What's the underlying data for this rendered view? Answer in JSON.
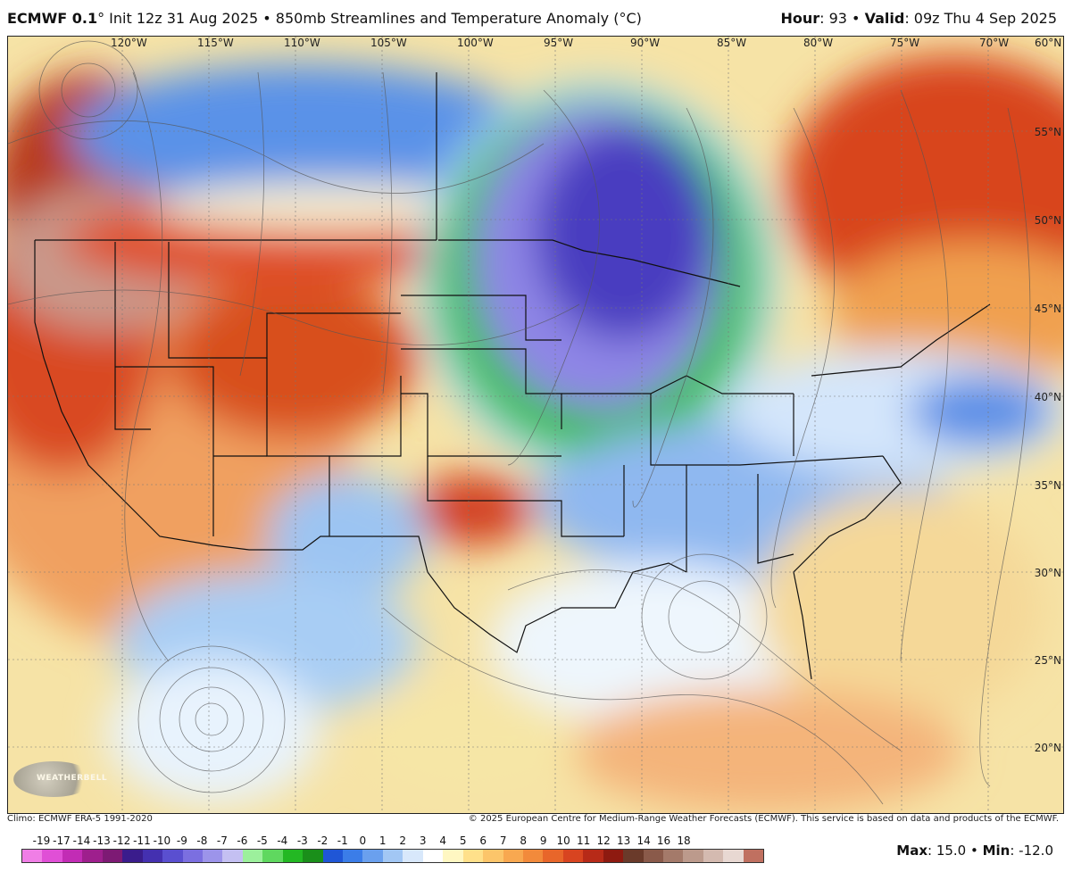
{
  "header": {
    "model": "ECMWF 0.1",
    "degree": "°",
    "init": " Init 12z 31 Aug 2025 • 850mb Streamlines and Temperature Anomaly (°C)",
    "hour_label": "Hour",
    "hour_value": ": 93 • ",
    "valid_label": "Valid",
    "valid_value": ": 09z Thu 4 Sep 2025"
  },
  "map": {
    "longitudes": [
      "120°W",
      "115°W",
      "110°W",
      "105°W",
      "100°W",
      "95°W",
      "90°W",
      "85°W",
      "80°W",
      "75°W",
      "70°W",
      "60°N"
    ],
    "latitudes": [
      "55°N",
      "50°N",
      "45°N",
      "40°N",
      "35°N",
      "30°N",
      "25°N",
      "20°N"
    ],
    "logo_text": "WEATHERBELL"
  },
  "credits": {
    "left": "Climo: ECMWF ERA-5 1991-2020",
    "right": "© 2025 European Centre for Medium-Range Weather Forecasts (ECMWF). This service is based on data and products of the ECMWF."
  },
  "scale": {
    "labels": [
      "-19",
      "-17",
      "-14",
      "-13",
      "-12",
      "-11",
      "-10",
      "-9",
      "-8",
      "-7",
      "-6",
      "-5",
      "-4",
      "-3",
      "-2",
      "-1",
      "0",
      "1",
      "2",
      "3",
      "4",
      "5",
      "6",
      "7",
      "8",
      "9",
      "10",
      "11",
      "12",
      "13",
      "14",
      "16",
      "18"
    ],
    "colors": [
      "#f07ee6",
      "#e04fd6",
      "#c22cb5",
      "#9e1f8d",
      "#7d1a74",
      "#3a1c8c",
      "#4430b0",
      "#5a4fd0",
      "#7b6fe0",
      "#9c94ea",
      "#c4c0f2",
      "#9cf09c",
      "#5fd85f",
      "#23b823",
      "#1a8f1a",
      "#1f56d6",
      "#3b7de8",
      "#6aa0ee",
      "#a2c7f4",
      "#d8e8fb",
      "#ffffff",
      "#fff7c2",
      "#ffe08a",
      "#fcc56a",
      "#f8a850",
      "#f28a3b",
      "#e8662a",
      "#d84420",
      "#b72a18",
      "#8e1a10",
      "#6a3a2a",
      "#8a5a4a",
      "#a47a6a",
      "#bc9a8c",
      "#d4bab0",
      "#e8d8d2",
      "#c07060"
    ],
    "max_label": "Max",
    "max_value": ": 15.0 • ",
    "min_label": "Min",
    "min_value": ": -12.0"
  }
}
